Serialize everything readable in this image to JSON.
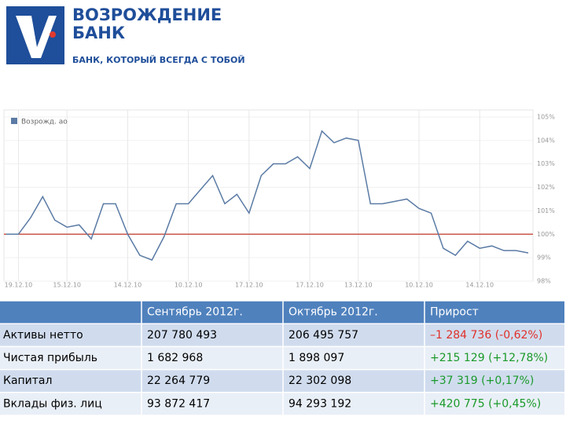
{
  "header": {
    "brand_line1": "ВОЗРОЖДЕНИЕ",
    "brand_line2": "БАНК",
    "slogan": "БАНК, КОТОРЫЙ ВСЕГДА С ТОБОЙ"
  },
  "chart_data": {
    "type": "line",
    "categories": [
      null,
      "19.12.10",
      null,
      null,
      null,
      "15.12.10",
      null,
      null,
      null,
      null,
      "14.12.10",
      null,
      null,
      null,
      null,
      "10.12.10",
      null,
      null,
      null,
      null,
      "17.12.10",
      null,
      null,
      null,
      null,
      "17.12.10",
      null,
      null,
      null,
      "13.12.10",
      null,
      null,
      null,
      null,
      "10.12.10",
      null,
      null,
      null,
      null,
      "14.12.10",
      null,
      null,
      null,
      null
    ],
    "series": [
      {
        "name": "Возрожд. ао",
        "color": "#5b7ba5",
        "values": [
          100.0,
          100.0,
          100.7,
          101.6,
          100.6,
          100.3,
          100.4,
          99.8,
          101.3,
          101.3,
          100.0,
          99.1,
          98.9,
          99.9,
          101.3,
          101.3,
          101.9,
          102.5,
          101.3,
          101.7,
          100.9,
          102.5,
          103.0,
          103.0,
          103.3,
          102.8,
          104.4,
          103.9,
          104.1,
          104.0,
          101.3,
          101.3,
          101.4,
          101.5,
          101.1,
          100.9,
          99.4,
          99.1,
          99.7,
          99.4,
          99.5,
          99.3,
          99.3,
          99.2
        ]
      }
    ],
    "reference_line": {
      "value": 100,
      "color": "#c0392b"
    },
    "ylim": [
      98,
      105.3
    ],
    "yticks": [
      {
        "value": 98,
        "label": "98%"
      },
      {
        "value": 99,
        "label": "99%"
      },
      {
        "value": 100,
        "label": "100%"
      },
      {
        "value": 101,
        "label": "101%"
      },
      {
        "value": 102,
        "label": "102%"
      },
      {
        "value": 103,
        "label": "103%"
      },
      {
        "value": 104,
        "label": "104%"
      },
      {
        "value": 105,
        "label": "105%"
      }
    ],
    "grid": true,
    "legend": "top-left"
  },
  "table": {
    "columns": [
      "Сентябрь 2012г.",
      "Октябрь 2012г.",
      "Прирост"
    ],
    "rows": [
      {
        "label": "Активы нетто",
        "cells": [
          "207 780 493",
          "206 495 757",
          "–1 284 736 (-0,62%)"
        ],
        "growth_color": "#e0302a"
      },
      {
        "label": "Чистая прибыль",
        "cells": [
          "1 682 968",
          "1 898 097",
          "+215 129 (+12,78%)"
        ],
        "growth_color": "#1a9a2a"
      },
      {
        "label": "Капитал",
        "cells": [
          "22 264 779",
          "22 302 098",
          "+37 319 (+0,17%)"
        ],
        "growth_color": "#1a9a2a"
      },
      {
        "label": "Вклады физ. лиц",
        "cells": [
          "93 872 417",
          "94 293 192",
          "+420 775 (+0,45%)"
        ],
        "growth_color": "#1a9a2a"
      }
    ]
  }
}
